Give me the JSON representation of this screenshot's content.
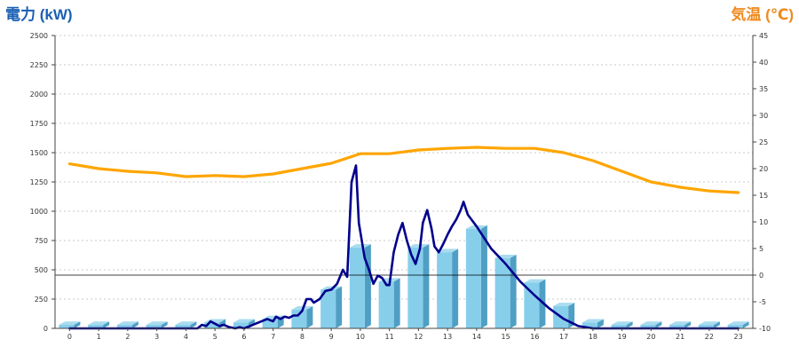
{
  "chart_data": {
    "type": "bar+line",
    "left_axis": {
      "title": "電力 (kW)",
      "min": 0,
      "max": 2500,
      "step": 250,
      "color": "#1a5fb4"
    },
    "right_axis": {
      "title": "気温 (℃)",
      "min": -10,
      "max": 45,
      "step": 5,
      "color": "#ef8a1e"
    },
    "x_axis": {
      "categories": [
        "0",
        "1",
        "2",
        "3",
        "4",
        "5",
        "6",
        "7",
        "8",
        "9",
        "10",
        "11",
        "12",
        "13",
        "14",
        "15",
        "16",
        "17",
        "18",
        "19",
        "20",
        "21",
        "22",
        "23"
      ]
    },
    "grid": "horizontal-dotted",
    "bar_series": {
      "axis": "left",
      "color": "#87ceeb",
      "values": [
        30,
        30,
        30,
        30,
        30,
        50,
        50,
        80,
        160,
        330,
        690,
        400,
        690,
        650,
        850,
        600,
        390,
        190,
        50,
        30,
        30,
        30,
        30,
        30
      ]
    },
    "power_line": {
      "axis": "left",
      "color": "#00008b",
      "points": [
        [
          0,
          0
        ],
        [
          1,
          0
        ],
        [
          2,
          0
        ],
        [
          3,
          0
        ],
        [
          4,
          0
        ],
        [
          4.4,
          0
        ],
        [
          4.55,
          30
        ],
        [
          4.7,
          20
        ],
        [
          4.85,
          60
        ],
        [
          5.0,
          40
        ],
        [
          5.15,
          20
        ],
        [
          5.3,
          30
        ],
        [
          5.5,
          10
        ],
        [
          5.7,
          0
        ],
        [
          5.85,
          10
        ],
        [
          6.0,
          0
        ],
        [
          6.2,
          20
        ],
        [
          6.4,
          40
        ],
        [
          6.6,
          60
        ],
        [
          6.8,
          80
        ],
        [
          7.0,
          60
        ],
        [
          7.1,
          100
        ],
        [
          7.25,
          80
        ],
        [
          7.4,
          100
        ],
        [
          7.55,
          90
        ],
        [
          7.7,
          110
        ],
        [
          7.85,
          110
        ],
        [
          8.0,
          150
        ],
        [
          8.15,
          250
        ],
        [
          8.3,
          250
        ],
        [
          8.4,
          220
        ],
        [
          8.6,
          250
        ],
        [
          8.8,
          320
        ],
        [
          9.0,
          330
        ],
        [
          9.2,
          380
        ],
        [
          9.4,
          500
        ],
        [
          9.55,
          440
        ],
        [
          9.7,
          1250
        ],
        [
          9.85,
          1390
        ],
        [
          9.95,
          900
        ],
        [
          10.15,
          600
        ],
        [
          10.3,
          500
        ],
        [
          10.45,
          380
        ],
        [
          10.6,
          450
        ],
        [
          10.75,
          430
        ],
        [
          10.9,
          370
        ],
        [
          11.0,
          370
        ],
        [
          11.15,
          650
        ],
        [
          11.3,
          800
        ],
        [
          11.45,
          900
        ],
        [
          11.6,
          750
        ],
        [
          11.75,
          630
        ],
        [
          11.9,
          550
        ],
        [
          12.05,
          680
        ],
        [
          12.15,
          900
        ],
        [
          12.3,
          1010
        ],
        [
          12.45,
          850
        ],
        [
          12.55,
          700
        ],
        [
          12.7,
          650
        ],
        [
          12.85,
          720
        ],
        [
          13.0,
          800
        ],
        [
          13.15,
          870
        ],
        [
          13.3,
          930
        ],
        [
          13.45,
          1010
        ],
        [
          13.55,
          1080
        ],
        [
          13.7,
          970
        ],
        [
          13.85,
          920
        ],
        [
          14.0,
          870
        ],
        [
          14.5,
          680
        ],
        [
          15.0,
          550
        ],
        [
          15.5,
          400
        ],
        [
          16.0,
          280
        ],
        [
          16.5,
          170
        ],
        [
          17.0,
          80
        ],
        [
          17.5,
          20
        ],
        [
          18.0,
          0
        ],
        [
          19,
          0
        ],
        [
          20,
          0
        ],
        [
          21,
          0
        ],
        [
          22,
          0
        ],
        [
          23,
          0
        ]
      ]
    },
    "temperature_line": {
      "axis": "right",
      "color": "#ffa500",
      "points": [
        [
          0,
          20.9
        ],
        [
          1,
          20.0
        ],
        [
          2,
          19.5
        ],
        [
          3,
          19.2
        ],
        [
          4,
          18.5
        ],
        [
          5,
          18.7
        ],
        [
          6,
          18.5
        ],
        [
          7,
          19.0
        ],
        [
          8,
          20.0
        ],
        [
          9,
          21.0
        ],
        [
          10,
          22.8
        ],
        [
          11,
          22.8
        ],
        [
          12,
          23.5
        ],
        [
          13,
          23.8
        ],
        [
          14,
          24.0
        ],
        [
          15,
          23.8
        ],
        [
          16,
          23.8
        ],
        [
          17,
          23.0
        ],
        [
          18,
          21.5
        ],
        [
          19,
          19.5
        ],
        [
          20,
          17.5
        ],
        [
          21,
          16.5
        ],
        [
          22,
          15.8
        ],
        [
          23,
          15.5
        ]
      ]
    },
    "reference_line": {
      "axis": "right",
      "value": 0,
      "color": "#000000"
    }
  }
}
